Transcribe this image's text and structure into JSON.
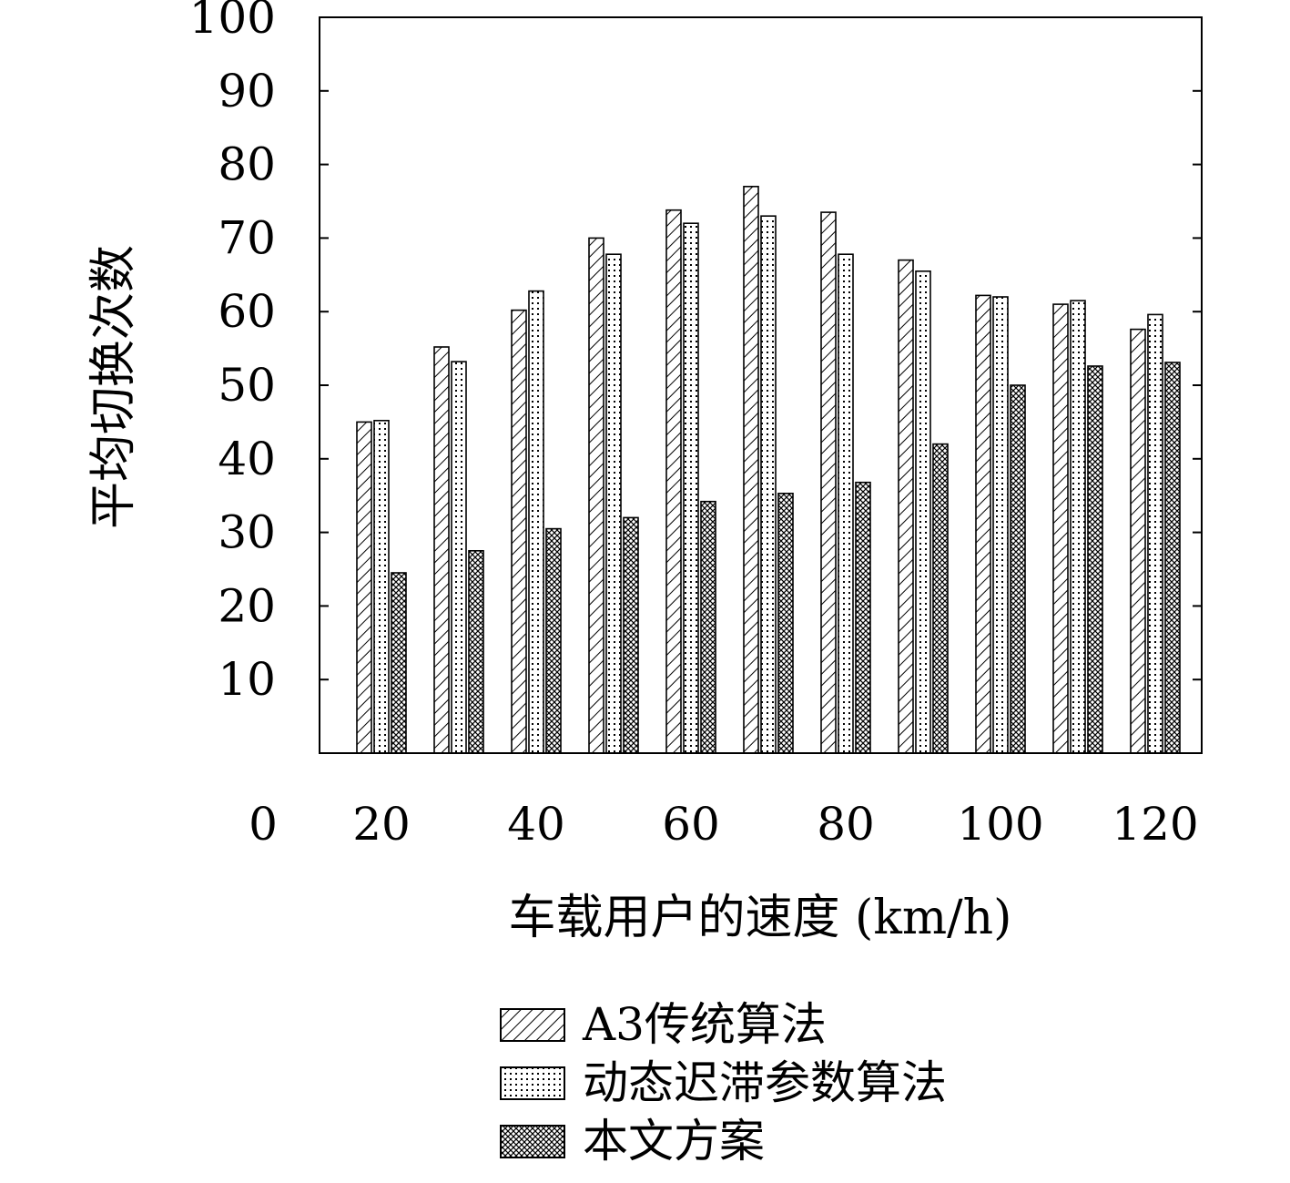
{
  "chart_data": {
    "type": "bar",
    "xlabel": "车载用户的速度 (km/h)",
    "ylabel": "平均切换次数",
    "categories": [
      20,
      30,
      40,
      50,
      60,
      70,
      80,
      90,
      100,
      110,
      120
    ],
    "x_tick_labels": [
      "0",
      "20",
      "40",
      "60",
      "80",
      "100",
      "120"
    ],
    "x_tick_values": [
      0,
      20,
      40,
      60,
      80,
      100,
      120
    ],
    "y_tick_labels": [
      "10",
      "20",
      "30",
      "40",
      "50",
      "60",
      "70",
      "80",
      "90",
      "100"
    ],
    "y_tick_values": [
      10,
      20,
      30,
      40,
      50,
      60,
      70,
      80,
      90,
      100
    ],
    "ylim": [
      0,
      100
    ],
    "xlim": [
      12,
      126
    ],
    "grid": false,
    "legend_position": "bottom",
    "series": [
      {
        "name": "A3传统算法",
        "pattern": "diagonal-hatch",
        "values": [
          45,
          55.2,
          60.2,
          70,
          73.8,
          77,
          73.5,
          67,
          62.2,
          61,
          57.6
        ]
      },
      {
        "name": "动态迟滞参数算法",
        "pattern": "dotted",
        "values": [
          45.2,
          53.2,
          62.8,
          67.8,
          72,
          73,
          67.8,
          65.5,
          62,
          61.5,
          59.6
        ]
      },
      {
        "name": "本文方案",
        "pattern": "crosshatch",
        "values": [
          24.5,
          27.5,
          30.5,
          32,
          34.2,
          35.3,
          36.8,
          42,
          50,
          52.6,
          53.1
        ]
      }
    ]
  }
}
